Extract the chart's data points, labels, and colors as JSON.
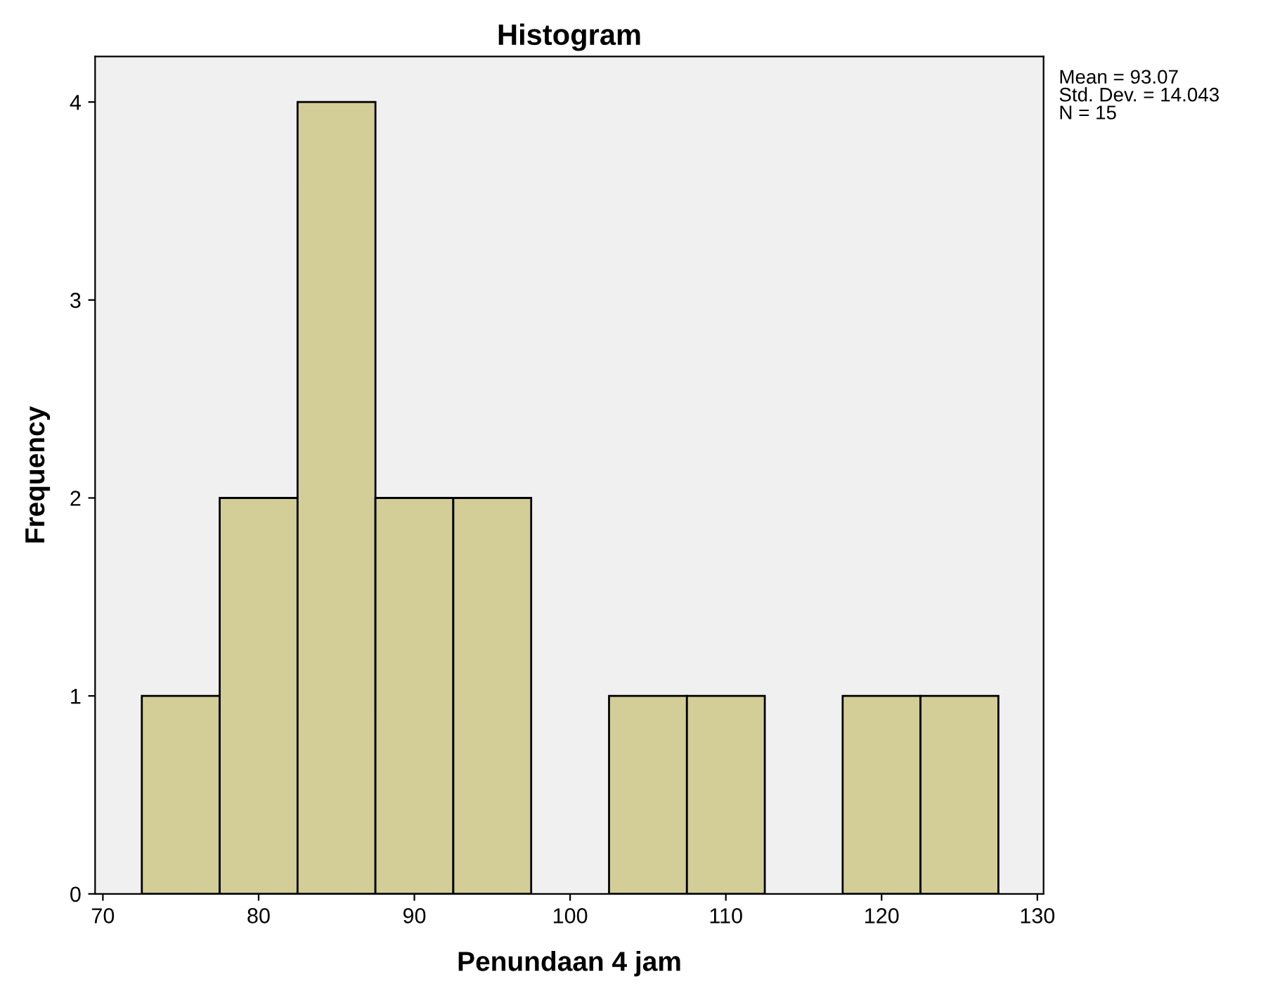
{
  "chart_data": {
    "type": "histogram",
    "title": "Histogram",
    "xlabel": "Penundaan 4 jam",
    "ylabel": "Frequency",
    "bins": [
      72.5,
      77.5,
      82.5,
      87.5,
      92.5,
      97.5,
      102.5,
      107.5,
      112.5,
      117.5,
      122.5,
      127.5
    ],
    "values": [
      1,
      2,
      4,
      2,
      2,
      0,
      1,
      1,
      0,
      1,
      1
    ],
    "color": "#d3ce97",
    "xlim": [
      69.5,
      130.4
    ],
    "xticks": [
      70,
      80,
      90,
      100,
      110,
      120,
      130
    ],
    "ylim": [
      0,
      4.23
    ],
    "yticks": [
      0,
      1,
      2,
      3,
      4
    ],
    "grid": false,
    "annotations": [
      "Mean = 93.07",
      "Std. Dev. = 14.043",
      "N = 15"
    ]
  }
}
